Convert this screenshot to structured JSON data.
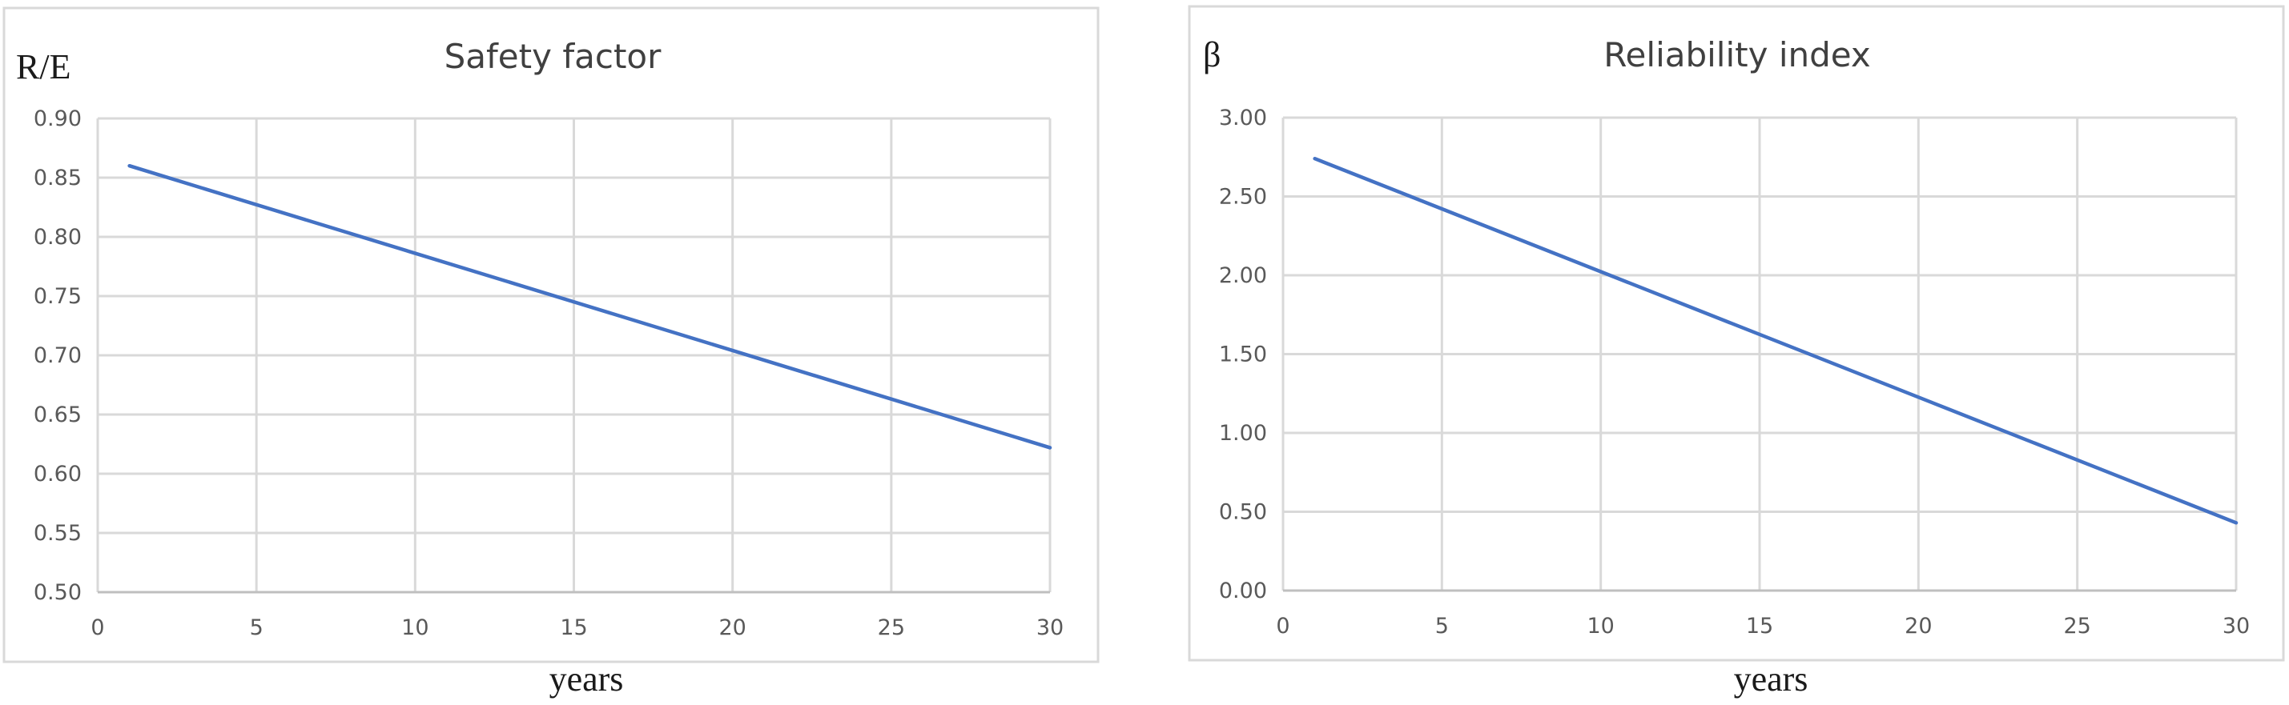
{
  "chart_data": [
    {
      "type": "line",
      "title": "Safety factor",
      "ylabel": "R/E",
      "xlabel": "years",
      "xlim": [
        0,
        30
      ],
      "ylim": [
        0.5,
        0.9
      ],
      "x_ticks": [
        "0",
        "5",
        "10",
        "15",
        "20",
        "25",
        "30"
      ],
      "y_ticks": [
        "0.50",
        "0.55",
        "0.60",
        "0.65",
        "0.70",
        "0.75",
        "0.80",
        "0.85",
        "0.90"
      ],
      "grid": true,
      "line_color": "#4472C4",
      "series": [
        {
          "x": [
            1,
            30
          ],
          "y": [
            0.86,
            0.622
          ]
        }
      ]
    },
    {
      "type": "line",
      "title": "Reliability index",
      "ylabel": "β",
      "xlabel": "years",
      "xlim": [
        0,
        30
      ],
      "ylim": [
        0.0,
        3.0
      ],
      "x_ticks": [
        "0",
        "5",
        "10",
        "15",
        "20",
        "25",
        "30"
      ],
      "y_ticks": [
        "0.00",
        "0.50",
        "1.00",
        "1.50",
        "2.00",
        "2.50",
        "3.00"
      ],
      "grid": true,
      "line_color": "#4472C4",
      "series": [
        {
          "x": [
            1,
            30
          ],
          "y": [
            2.74,
            0.43
          ]
        }
      ]
    }
  ]
}
